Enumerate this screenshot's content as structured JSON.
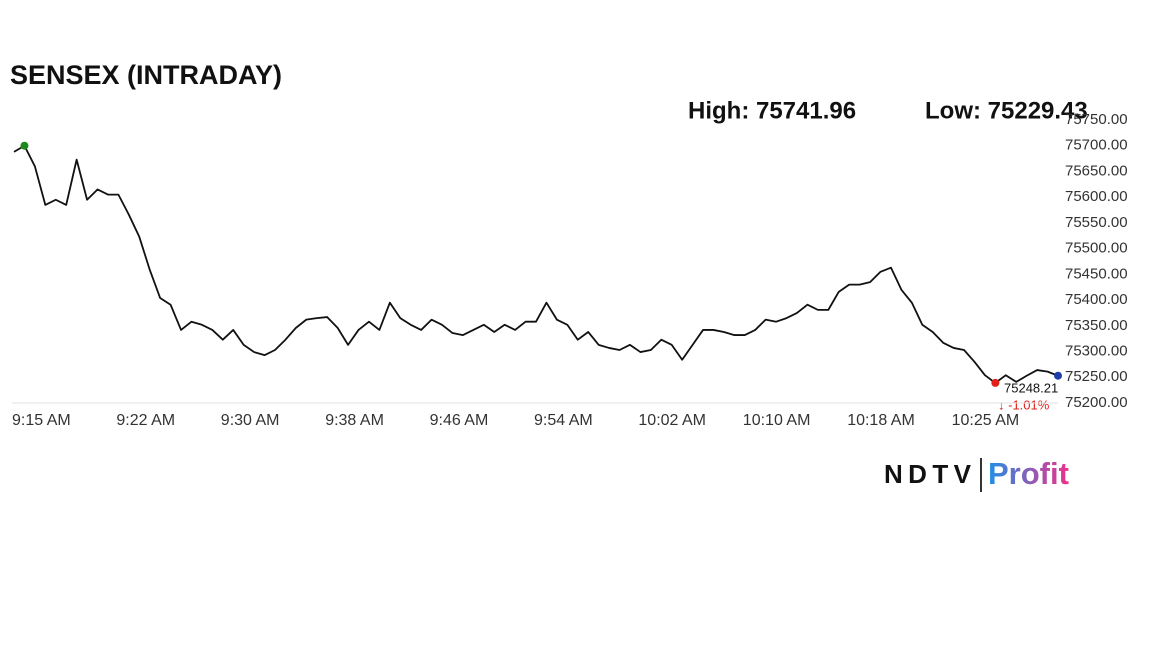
{
  "chart_data": {
    "type": "line",
    "title": "SENSEX (INTRADAY)",
    "high_label": "High: 75741.96",
    "low_label": "Low: 75229.43",
    "last_value_label": "75248.21",
    "change_label": "↓ -1.01%",
    "logo": {
      "left": "NDTV",
      "right": "Profit"
    },
    "categories": [
      "9:15 AM",
      null,
      null,
      null,
      null,
      null,
      null,
      null,
      null,
      null,
      "9:22 AM",
      null,
      null,
      null,
      null,
      null,
      null,
      null,
      null,
      null,
      "9:30 AM",
      null,
      null,
      null,
      null,
      null,
      null,
      null,
      null,
      null,
      "9:38 AM",
      null,
      null,
      null,
      null,
      null,
      null,
      null,
      null,
      null,
      "9:46 AM",
      null,
      null,
      null,
      null,
      null,
      null,
      null,
      null,
      null,
      "9:54 AM",
      null,
      null,
      null,
      null,
      null,
      null,
      null,
      null,
      null,
      "10:02 AM",
      null,
      null,
      null,
      null,
      null,
      null,
      null,
      null,
      null,
      "10:10 AM",
      null,
      null,
      null,
      null,
      null,
      null,
      null,
      null,
      null,
      "10:18 AM",
      null,
      null,
      null,
      null,
      null,
      null,
      null,
      null,
      null,
      "10:25 AM",
      null,
      null,
      null,
      null,
      null,
      null,
      null,
      null,
      null,
      null
    ],
    "values": [
      75688,
      75700,
      75660,
      75585,
      75595,
      75585,
      75673,
      75595,
      75615,
      75605,
      75605,
      75566,
      75523,
      75459,
      75404,
      75391,
      75342,
      75358,
      75352,
      75342,
      75323,
      75342,
      75313,
      75299,
      75293,
      75303,
      75323,
      75346,
      75362,
      75365,
      75367,
      75346,
      75313,
      75342,
      75358,
      75342,
      75395,
      75365,
      75352,
      75342,
      75362,
      75352,
      75336,
      75332,
      75342,
      75352,
      75338,
      75352,
      75342,
      75358,
      75358,
      75395,
      75362,
      75352,
      75323,
      75338,
      75313,
      75307,
      75303,
      75313,
      75299,
      75303,
      75323,
      75313,
      75284,
      75313,
      75342,
      75342,
      75338,
      75332,
      75332,
      75342,
      75362,
      75358,
      75365,
      75375,
      75391,
      75381,
      75381,
      75416,
      75430,
      75430,
      75435,
      75455,
      75463,
      75420,
      75395,
      75352,
      75338,
      75317,
      75307,
      75303,
      75280,
      75254,
      75239,
      75254,
      75241,
      75253,
      75264,
      75261,
      75253
    ],
    "color": "#111111",
    "marker_colors": {
      "high": "#1a8a1a",
      "low": "#e0201a",
      "last": "#1c3fa8"
    },
    "ylim": [
      75200,
      75750
    ],
    "yticks": [
      {
        "value": 75200,
        "label": "75200.00"
      },
      {
        "value": 75250,
        "label": "75250.00"
      },
      {
        "value": 75300,
        "label": "75300.00"
      },
      {
        "value": 75350,
        "label": "75350.00"
      },
      {
        "value": 75400,
        "label": "75400.00"
      },
      {
        "value": 75450,
        "label": "75450.00"
      },
      {
        "value": 75500,
        "label": "75500.00"
      },
      {
        "value": 75550,
        "label": "75550.00"
      },
      {
        "value": 75600,
        "label": "75600.00"
      },
      {
        "value": 75650,
        "label": "75650.00"
      },
      {
        "value": 75700,
        "label": "75700.00"
      },
      {
        "value": 75750,
        "label": "75750.00"
      }
    ]
  }
}
